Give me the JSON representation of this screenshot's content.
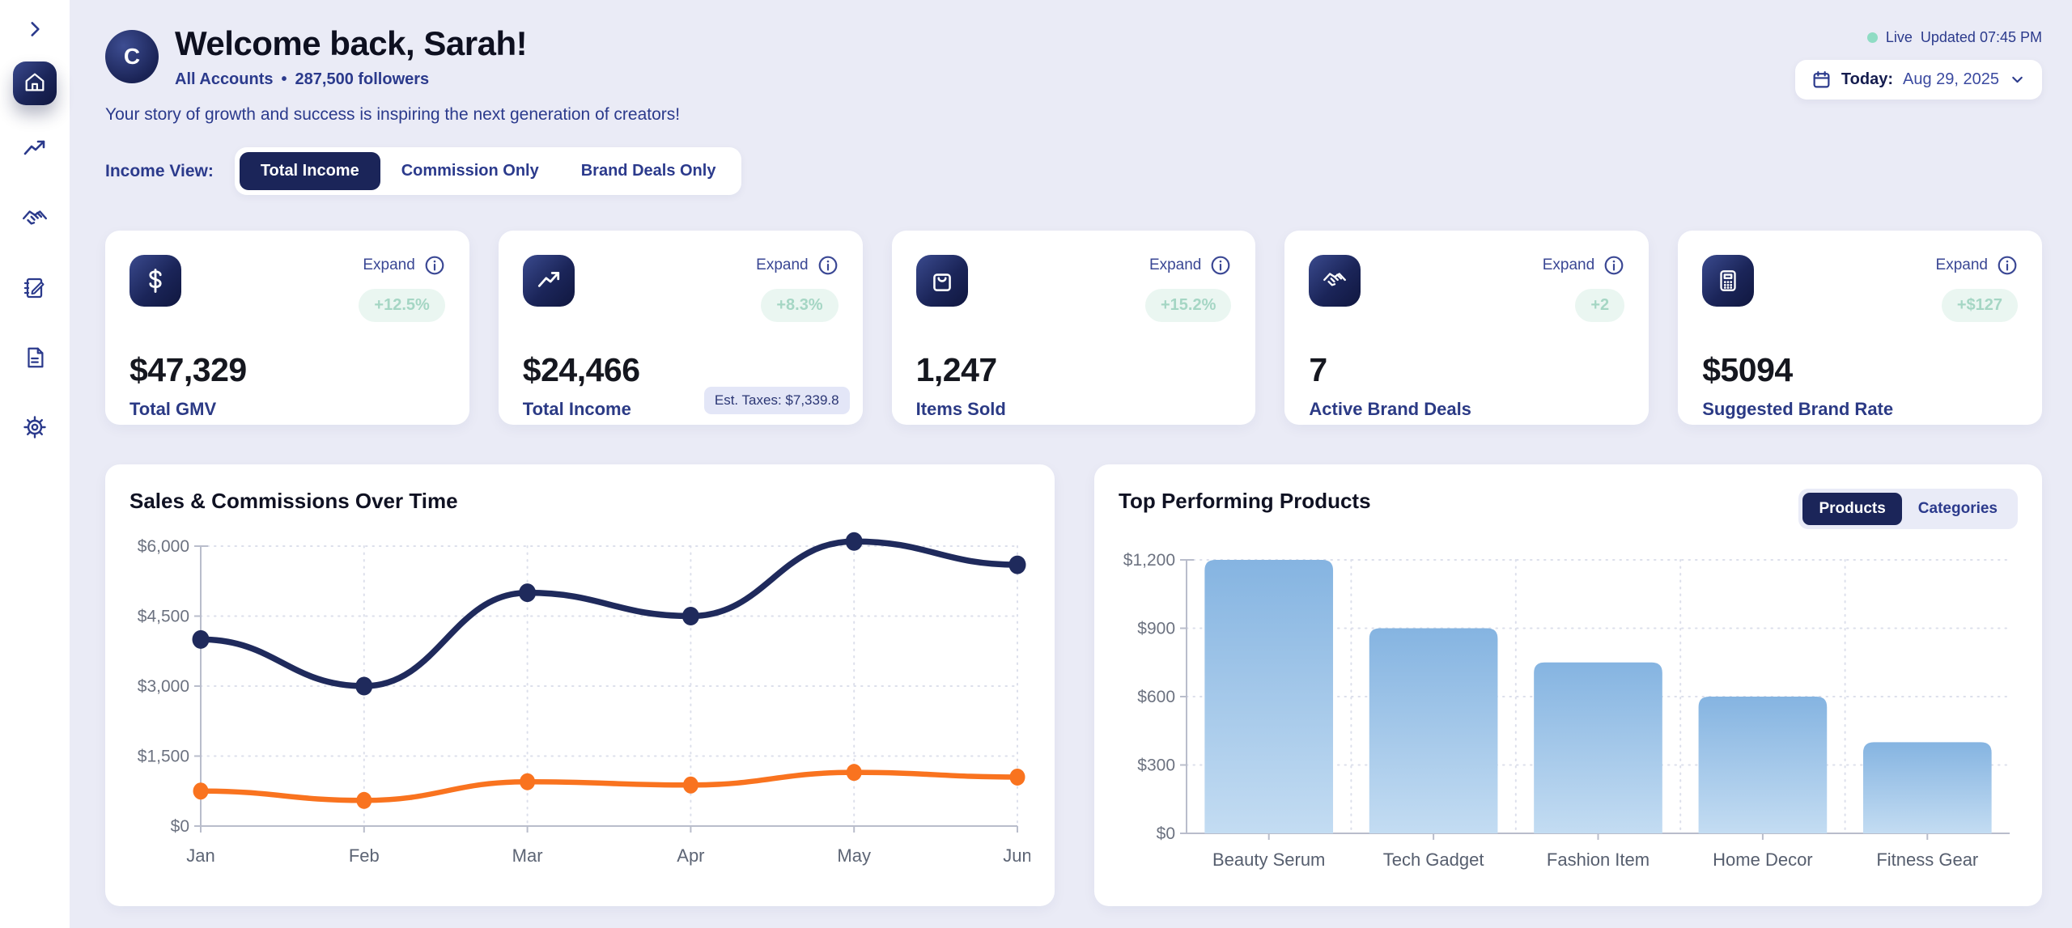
{
  "theme": {
    "background": "#eaebf6",
    "sidebar_bg": "#ffffff",
    "navy": "#1b2559",
    "navy_text": "#2b3a8c",
    "orange": "#f9731f",
    "badge_bg": "#eaf6f1",
    "badge_text": "#a5d6c4",
    "live_dot": "#8fdcc4",
    "bar_gradient_top": "#85b4e1",
    "bar_gradient_bottom": "#c3dcf2"
  },
  "sidebar": {
    "toggle_icon": "chevron-right-icon",
    "items": [
      {
        "icon": "home",
        "active": true
      },
      {
        "icon": "trending-up",
        "active": false
      },
      {
        "icon": "handshake",
        "active": false
      },
      {
        "icon": "notebook-pen",
        "active": false
      },
      {
        "icon": "document",
        "active": false
      },
      {
        "icon": "settings-gear",
        "active": false
      }
    ]
  },
  "header": {
    "avatar_initial": "C",
    "title": "Welcome back, Sarah!",
    "account_label": "All Accounts",
    "separator": "•",
    "followers": "287,500 followers",
    "tagline": "Your story of growth and success is inspiring the next generation of creators!",
    "live_label": "Live",
    "updated_label": "Updated 07:45 PM",
    "date_prefix": "Today:",
    "date_value": "Aug 29, 2025"
  },
  "income_view": {
    "label": "Income View:",
    "options": [
      "Total Income",
      "Commission Only",
      "Brand Deals Only"
    ],
    "active_index": 0
  },
  "stat_cards": [
    {
      "icon": "dollar-sign",
      "expand_label": "Expand",
      "change": "+12.5%",
      "value": "$47,329",
      "label": "Total GMV"
    },
    {
      "icon": "trending-up",
      "expand_label": "Expand",
      "change": "+8.3%",
      "value": "$24,466",
      "label": "Total Income",
      "footnote": "Est. Taxes: $7,339.8"
    },
    {
      "icon": "shopping-bag",
      "expand_label": "Expand",
      "change": "+15.2%",
      "value": "1,247",
      "label": "Items Sold"
    },
    {
      "icon": "handshake",
      "expand_label": "Expand",
      "change": "+2",
      "value": "7",
      "label": "Active Brand Deals"
    },
    {
      "icon": "calculator",
      "expand_label": "Expand",
      "change": "+$127",
      "value": "$5094",
      "label": "Suggested Brand Rate"
    }
  ],
  "charts": {
    "sales": {
      "title": "Sales & Commissions Over Time"
    },
    "products": {
      "title": "Top Performing Products",
      "toggle": [
        "Products",
        "Categories"
      ],
      "active_index": 0
    }
  },
  "chart_data": [
    {
      "type": "line",
      "title": "Sales & Commissions Over Time",
      "x": [
        "Jan",
        "Feb",
        "Mar",
        "Apr",
        "May",
        "Jun"
      ],
      "series": [
        {
          "name": "sales",
          "color": "#1f2a5c",
          "values": [
            4000,
            3000,
            5000,
            4500,
            6100,
            5600
          ]
        },
        {
          "name": "commissions",
          "color": "#f9731f",
          "values": [
            750,
            550,
            950,
            880,
            1150,
            1050
          ]
        }
      ],
      "ylim": [
        0,
        6000
      ],
      "ytick_values": [
        0,
        1500,
        3000,
        4500,
        6000
      ],
      "yticks": [
        "$0",
        "$1,500",
        "$3,000",
        "$4,500",
        "$6,000"
      ],
      "grid": true,
      "legend": "none"
    },
    {
      "type": "bar",
      "title": "Top Performing Products",
      "categories": [
        "Beauty Serum",
        "Tech Gadget",
        "Fashion Item",
        "Home Decor",
        "Fitness Gear"
      ],
      "values": [
        1200,
        900,
        750,
        600,
        400
      ],
      "ylim": [
        0,
        1200
      ],
      "ytick_values": [
        0,
        300,
        600,
        900,
        1200
      ],
      "yticks": [
        "$0",
        "$300",
        "$600",
        "$900",
        "$1,200"
      ],
      "grid": true,
      "legend": "none"
    }
  ]
}
